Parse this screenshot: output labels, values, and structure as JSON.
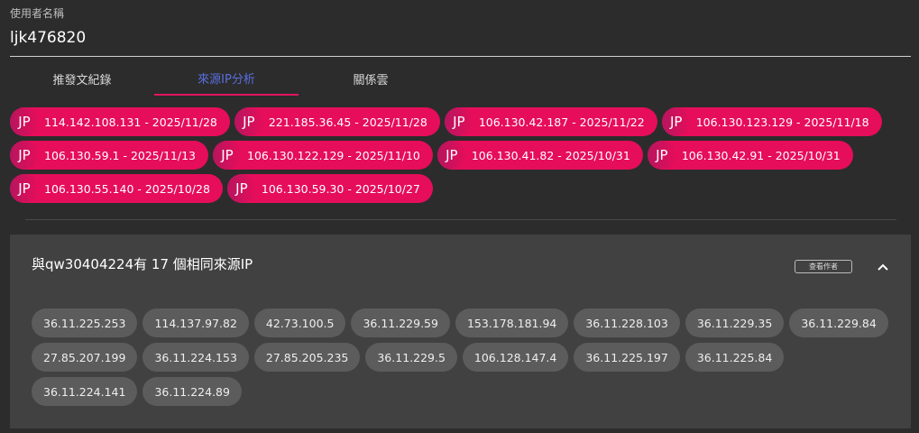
{
  "user": {
    "label": "使用者名稱",
    "value": "ljk476820"
  },
  "tabs": [
    {
      "label": "推發文紀錄",
      "active": false
    },
    {
      "label": "來源IP分析",
      "active": true
    },
    {
      "label": "關係雲",
      "active": false
    }
  ],
  "ip_chips": [
    {
      "country": "JP",
      "label": "114.142.108.131 - 2025/11/28"
    },
    {
      "country": "JP",
      "label": "221.185.36.45 - 2025/11/28"
    },
    {
      "country": "JP",
      "label": "106.130.42.187 - 2025/11/22"
    },
    {
      "country": "JP",
      "label": "106.130.123.129 - 2025/11/18"
    },
    {
      "country": "JP",
      "label": "106.130.59.1 - 2025/11/13"
    },
    {
      "country": "JP",
      "label": "106.130.122.129 - 2025/11/10"
    },
    {
      "country": "JP",
      "label": "106.130.41.82 - 2025/10/31"
    },
    {
      "country": "JP",
      "label": "106.130.42.91 - 2025/10/31"
    },
    {
      "country": "JP",
      "label": "106.130.55.140 - 2025/10/28"
    },
    {
      "country": "JP",
      "label": "106.130.59.30 - 2025/10/27"
    }
  ],
  "match_panel": {
    "title": "與qw30404224有 17 個相同來源IP",
    "view_author_label": "查看作者",
    "collapse_icon": "chevron-up-icon",
    "ips": [
      "36.11.225.253",
      "114.137.97.82",
      "42.73.100.5",
      "36.11.229.59",
      "153.178.181.94",
      "36.11.228.103",
      "36.11.229.35",
      "36.11.229.84",
      "27.85.207.199",
      "36.11.224.153",
      "27.85.205.235",
      "36.11.229.5",
      "106.128.147.4",
      "36.11.225.197",
      "36.11.225.84",
      "36.11.224.141",
      "36.11.224.89"
    ]
  },
  "colors": {
    "accent": "#e60d5a",
    "tab_active": "#5a6fe0",
    "panel_bg": "#414141",
    "page_bg": "#2c2c2c"
  }
}
